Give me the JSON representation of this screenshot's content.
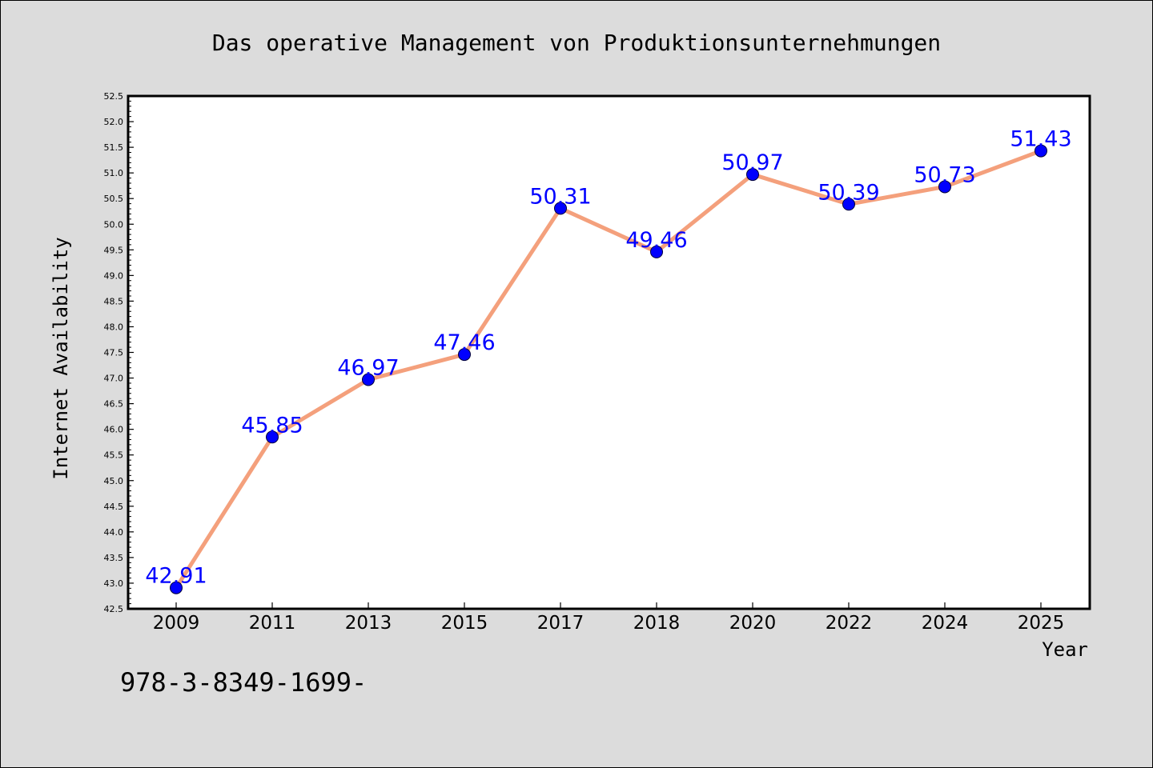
{
  "chart_data": {
    "type": "line",
    "title": "Das operative Management von Produktionsunternehmungen",
    "xlabel": "Year",
    "ylabel": "Internet Availability",
    "categories": [
      "2009",
      "2011",
      "2013",
      "2015",
      "2017",
      "2018",
      "2020",
      "2022",
      "2024",
      "2025"
    ],
    "series": [
      {
        "values": [
          42.91,
          45.85,
          46.97,
          47.46,
          50.31,
          49.46,
          50.97,
          50.39,
          50.73,
          51.43
        ]
      }
    ],
    "data_labels": [
      "42.91",
      "45.85",
      "46.97",
      "47.46",
      "50.31",
      "49.46",
      "50.97",
      "50.39",
      "50.73",
      "51.43"
    ],
    "ylim": [
      42.5,
      52.5
    ],
    "y_ticks": [
      "42.5",
      "43.0",
      "43.5",
      "44.0",
      "44.5",
      "45.0",
      "45.5",
      "46.0",
      "46.5",
      "47.0",
      "47.5",
      "48.0",
      "48.5",
      "49.0",
      "49.5",
      "50.0",
      "50.5",
      "51.0",
      "51.5",
      "52.0",
      "52.5"
    ],
    "grid": false,
    "colors": {
      "line": "#f4a07c",
      "marker": "#0000ff",
      "label": "#0000ff"
    }
  },
  "footer_text": "978-3-8349-1699-"
}
